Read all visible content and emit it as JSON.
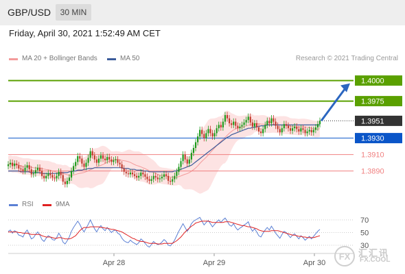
{
  "header": {
    "pair": "GBP/USD",
    "timeframe": "30 MIN",
    "datetime": "Friday, April 30, 2021 1:52:49 AM CET"
  },
  "legend": {
    "bollinger": "MA 20 + Bollinger Bands",
    "ma50": "MA 50",
    "credit": "Research © 2021 Trading Central"
  },
  "rsi_legend": {
    "rsi": "RSI",
    "ma9": "9MA"
  },
  "watermark": {
    "cn": "汇汇讯",
    "en": "FX.COOL"
  },
  "colors": {
    "up": "#1a9a1a",
    "down": "#c0392b",
    "target": "#5aa000",
    "support": "#0a55c8",
    "resistance": "#f08080",
    "current": "#333333",
    "arrow": "#2b66c0",
    "bollinger_fill": "#fde0e0",
    "ma20": "#f39a9a",
    "ma50": "#3a5a9a",
    "rsi": "#5a7fd4",
    "rsi_ma": "#e02020"
  },
  "chart_data": [
    {
      "type": "candlestick",
      "title": "GBP/USD",
      "timeframe": "30 MIN",
      "ylim": [
        1.3868,
        1.4018
      ],
      "x_ticks": [
        "Apr 28",
        "Apr 29",
        "Apr 30"
      ],
      "levels": [
        {
          "value": 1.4,
          "label": "1.4000",
          "kind": "target"
        },
        {
          "value": 1.3975,
          "label": "1.3975",
          "kind": "target"
        },
        {
          "value": 1.3951,
          "label": "1.3951",
          "kind": "current"
        },
        {
          "value": 1.393,
          "label": "1.3930",
          "kind": "support"
        },
        {
          "value": 1.391,
          "label": "1.3910",
          "kind": "resistance"
        },
        {
          "value": 1.389,
          "label": "1.3890",
          "kind": "resistance"
        }
      ],
      "arrow": {
        "from": 1.3951,
        "to": 1.4
      },
      "close": [
        1.3898,
        1.39,
        1.3896,
        1.3899,
        1.3897,
        1.3893,
        1.3892,
        1.389,
        1.3894,
        1.3897,
        1.3892,
        1.3886,
        1.3887,
        1.3891,
        1.3894,
        1.389,
        1.3884,
        1.3881,
        1.3884,
        1.3887,
        1.3885,
        1.3882,
        1.3881,
        1.3884,
        1.3889,
        1.3885,
        1.3877,
        1.3874,
        1.3878,
        1.3882,
        1.389,
        1.3896,
        1.3901,
        1.3908,
        1.3905,
        1.3899,
        1.3895,
        1.39,
        1.3906,
        1.3914,
        1.3909,
        1.3904,
        1.39,
        1.3905,
        1.3909,
        1.3905,
        1.3903,
        1.3907,
        1.3904,
        1.3901,
        1.3903,
        1.3904,
        1.39,
        1.3898,
        1.3893,
        1.3889,
        1.3887,
        1.3886,
        1.3888,
        1.3886,
        1.3884,
        1.3882,
        1.3884,
        1.3888,
        1.3886,
        1.3883,
        1.388,
        1.3878,
        1.388,
        1.3884,
        1.3882,
        1.388,
        1.3881,
        1.3883,
        1.3886,
        1.3884,
        1.3878,
        1.3877,
        1.388,
        1.3884,
        1.3889,
        1.3895,
        1.3902,
        1.391,
        1.3904,
        1.3899,
        1.3904,
        1.3912,
        1.3918,
        1.3925,
        1.3932,
        1.394,
        1.3935,
        1.393,
        1.3936,
        1.3941,
        1.3936,
        1.3932,
        1.3936,
        1.3942,
        1.3946,
        1.3943,
        1.395,
        1.3958,
        1.3954,
        1.3948,
        1.3946,
        1.395,
        1.3945,
        1.3942,
        1.3944,
        1.3946,
        1.3949,
        1.3952,
        1.3956,
        1.3949,
        1.3944,
        1.3948,
        1.3943,
        1.3938,
        1.3936,
        1.3941,
        1.3946,
        1.3951,
        1.3948,
        1.3954,
        1.395,
        1.3945,
        1.3941,
        1.3937,
        1.3942,
        1.3947,
        1.3945,
        1.3942,
        1.3939,
        1.3942,
        1.3944,
        1.3941,
        1.3938,
        1.3942,
        1.394,
        1.3936,
        1.3938,
        1.394,
        1.3937,
        1.394,
        1.3943,
        1.3947,
        1.3951
      ],
      "ma50": [
        1.389,
        1.389,
        1.389,
        1.389,
        1.389,
        1.389,
        1.3889,
        1.3889,
        1.3889,
        1.3889,
        1.3889,
        1.3888,
        1.3888,
        1.3888,
        1.3888,
        1.3888,
        1.3887,
        1.3887,
        1.3887,
        1.3887,
        1.3887,
        1.3887,
        1.3887,
        1.3887,
        1.3887,
        1.3888,
        1.3888,
        1.3888,
        1.3888,
        1.3889,
        1.3889,
        1.389,
        1.389,
        1.3891,
        1.3891,
        1.3891,
        1.3892,
        1.3892,
        1.3893,
        1.3893,
        1.3893,
        1.3894,
        1.3894,
        1.3894,
        1.3894,
        1.3894,
        1.3894,
        1.3894,
        1.3894,
        1.3894,
        1.3894,
        1.3894,
        1.3894,
        1.3894,
        1.3894,
        1.3893,
        1.3893,
        1.3893,
        1.3892,
        1.3892,
        1.3892,
        1.3891,
        1.3891,
        1.3891,
        1.389,
        1.389,
        1.389,
        1.3889,
        1.3889,
        1.3889,
        1.3889,
        1.3889,
        1.3889,
        1.3889,
        1.3889,
        1.3889,
        1.3889,
        1.3889,
        1.3889,
        1.389,
        1.389,
        1.3891,
        1.3892,
        1.3893,
        1.3894,
        1.3895,
        1.3896,
        1.3897,
        1.3899,
        1.3901,
        1.3903,
        1.3905,
        1.3907,
        1.3909,
        1.3911,
        1.3913,
        1.3915,
        1.3917,
        1.3919,
        1.3921,
        1.3923,
        1.3925,
        1.3927,
        1.3929,
        1.3931,
        1.3932,
        1.3934,
        1.3935,
        1.3936,
        1.3937,
        1.3938,
        1.3939,
        1.394,
        1.3941,
        1.3942,
        1.3942,
        1.3943,
        1.3943,
        1.3944,
        1.3944,
        1.3945,
        1.3945,
        1.3945,
        1.3946,
        1.3946,
        1.3946,
        1.3946,
        1.3946,
        1.3946,
        1.3946,
        1.3946,
        1.3946,
        1.3946,
        1.3946,
        1.3946,
        1.3946,
        1.3946,
        1.3946,
        1.3946,
        1.3946,
        1.3946,
        1.3946,
        1.3946,
        1.3946,
        1.3946,
        1.3946,
        1.3946,
        1.3946,
        1.3946
      ]
    },
    {
      "type": "line",
      "title": "RSI",
      "ylim": [
        30,
        70
      ],
      "y_ticks": [
        70,
        50,
        30
      ],
      "series": [
        {
          "name": "RSI",
          "values": [
            52,
            54,
            49,
            53,
            51,
            46,
            45,
            43,
            50,
            54,
            47,
            40,
            42,
            47,
            51,
            46,
            39,
            36,
            41,
            45,
            43,
            39,
            38,
            42,
            49,
            44,
            35,
            32,
            37,
            43,
            52,
            58,
            63,
            68,
            63,
            56,
            51,
            57,
            63,
            70,
            63,
            56,
            51,
            57,
            61,
            56,
            53,
            58,
            54,
            50,
            53,
            54,
            49,
            47,
            41,
            37,
            35,
            34,
            38,
            35,
            33,
            31,
            34,
            40,
            37,
            33,
            29,
            27,
            31,
            36,
            33,
            31,
            32,
            35,
            39,
            36,
            30,
            29,
            33,
            38,
            45,
            52,
            58,
            64,
            58,
            52,
            57,
            64,
            68,
            70,
            72,
            74,
            68,
            62,
            66,
            69,
            64,
            59,
            63,
            67,
            70,
            66,
            70,
            73,
            68,
            62,
            60,
            64,
            58,
            54,
            57,
            59,
            62,
            64,
            67,
            58,
            52,
            56,
            51,
            45,
            43,
            49,
            54,
            58,
            54,
            60,
            55,
            49,
            45,
            41,
            47,
            52,
            50,
            46,
            42,
            46,
            48,
            44,
            40,
            45,
            42,
            38,
            41,
            44,
            40,
            44,
            48,
            52,
            55
          ]
        },
        {
          "name": "9MA",
          "values": [
            51,
            51,
            51,
            51,
            51,
            50,
            50,
            49,
            49,
            49,
            48,
            47,
            47,
            47,
            47,
            47,
            45,
            44,
            43,
            43,
            43,
            42,
            41,
            41,
            42,
            42,
            41,
            40,
            40,
            40,
            41,
            43,
            45,
            49,
            53,
            56,
            58,
            58,
            58,
            59,
            59,
            59,
            59,
            59,
            58,
            58,
            57,
            57,
            56,
            55,
            55,
            54,
            53,
            52,
            51,
            49,
            47,
            45,
            43,
            41,
            40,
            38,
            37,
            36,
            36,
            35,
            34,
            33,
            33,
            33,
            33,
            32,
            32,
            32,
            33,
            33,
            33,
            33,
            33,
            35,
            37,
            40,
            43,
            47,
            51,
            54,
            57,
            60,
            62,
            65,
            66,
            67,
            68,
            68,
            68,
            68,
            67,
            66,
            66,
            66,
            66,
            66,
            66,
            67,
            67,
            67,
            66,
            65,
            64,
            63,
            62,
            61,
            61,
            60,
            59,
            59,
            58,
            57,
            56,
            54,
            53,
            52,
            52,
            52,
            52,
            53,
            53,
            53,
            53,
            52,
            51,
            50,
            49,
            48,
            47,
            46,
            46,
            45,
            44,
            44,
            43,
            43,
            42,
            42,
            42,
            42,
            43,
            44,
            45
          ]
        }
      ]
    }
  ]
}
